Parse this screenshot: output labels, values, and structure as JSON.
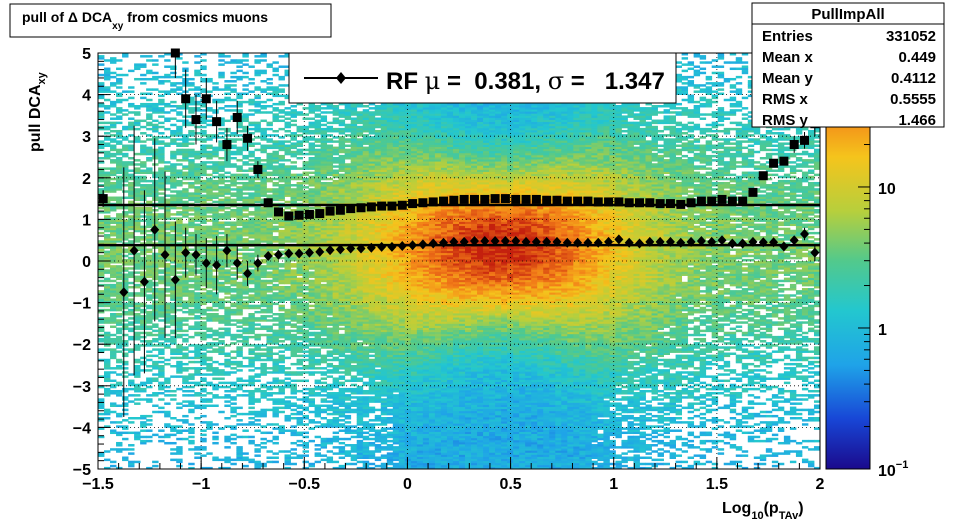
{
  "chart_data": {
    "type": "heatmap",
    "title": "pull of Δ DCA",
    "title_sub": "xy",
    "title_tail": " from cosmics muons",
    "xlabel_pre": "Log",
    "xlabel_sub1": "10",
    "xlabel_mid": "(p",
    "xlabel_sub2": "TAv",
    "xlabel_post": ")",
    "ylabel_pre": "pull DCA",
    "ylabel_sub": "xy",
    "xlim": [
      -1.5,
      2
    ],
    "ylim": [
      -5,
      5
    ],
    "x_ticks": [
      "−1.5",
      "−1",
      "−0.5",
      "0",
      "0.5",
      "1",
      "1.5",
      "2"
    ],
    "x_tick_values": [
      -1.5,
      -1,
      -0.5,
      0,
      0.5,
      1,
      1.5,
      2
    ],
    "y_ticks": [
      "−5",
      "−4",
      "−3",
      "−2",
      "−1",
      "0",
      "1",
      "2",
      "3",
      "4",
      "5"
    ],
    "y_tick_values": [
      -5,
      -4,
      -3,
      -2,
      -1,
      0,
      1,
      2,
      3,
      4,
      5
    ],
    "grid": true,
    "color_scale": {
      "type": "log",
      "labels": [
        {
          "base": "10",
          "exp": "−1",
          "value": 0.1
        },
        {
          "base": "1",
          "exp": "",
          "value": 1
        },
        {
          "base": "10",
          "exp": "",
          "value": 10
        }
      ]
    },
    "legend": {
      "position": "top-center",
      "prefix": "RF ",
      "mu_symbol": "μ",
      "mu_text": " =  0.381, ",
      "sigma_symbol": "σ",
      "sigma_text": " =   1.347"
    },
    "fit_lines": [
      {
        "name": "mean",
        "y": 0.381
      },
      {
        "name": "sigma",
        "y": 1.347
      }
    ],
    "stats_box": {
      "title": "PullImpAll",
      "rows": [
        {
          "label": "Entries",
          "value": "331052"
        },
        {
          "label": "Mean x",
          "value": "0.449"
        },
        {
          "label": "Mean y",
          "value": "0.4112"
        },
        {
          "label": "RMS x",
          "value": "0.5555"
        },
        {
          "label": "RMS y",
          "value": "1.466"
        }
      ]
    },
    "series": [
      {
        "marker": "diamond",
        "points": [
          [
            -1.475,
            1.5,
            0.2
          ],
          [
            -1.375,
            -0.75,
            3
          ],
          [
            -1.325,
            0.25,
            3
          ],
          [
            -1.275,
            -0.5,
            2.2
          ],
          [
            -1.225,
            0.75,
            2.2
          ],
          [
            -1.175,
            0.15,
            2
          ],
          [
            -1.125,
            -0.45,
            1.4
          ],
          [
            -1.075,
            0.2,
            0.6
          ],
          [
            -1.025,
            0.15,
            0.5
          ],
          [
            -0.975,
            -0.05,
            0.6
          ],
          [
            -0.925,
            -0.1,
            0.7
          ],
          [
            -0.875,
            0.25,
            0.4
          ],
          [
            -0.825,
            -0.05,
            0.4
          ],
          [
            -0.775,
            -0.3,
            0.3
          ],
          [
            -0.725,
            -0.05,
            0.2
          ],
          [
            -0.675,
            0.12,
            0.1
          ],
          [
            -0.625,
            0.15,
            0.05
          ],
          [
            -0.575,
            0.18,
            0.05
          ],
          [
            -0.525,
            0.18,
            0.05
          ],
          [
            -0.475,
            0.2,
            0.05
          ],
          [
            -0.425,
            0.22,
            0.05
          ],
          [
            -0.375,
            0.26,
            0.05
          ],
          [
            -0.325,
            0.28,
            0.05
          ],
          [
            -0.275,
            0.3,
            0.05
          ],
          [
            -0.225,
            0.3,
            0.05
          ],
          [
            -0.175,
            0.32,
            0.05
          ],
          [
            -0.125,
            0.34,
            0.05
          ],
          [
            -0.075,
            0.34,
            0.05
          ],
          [
            -0.025,
            0.36,
            0.05
          ],
          [
            0.025,
            0.38,
            0.05
          ],
          [
            0.075,
            0.4,
            0.05
          ],
          [
            0.125,
            0.42,
            0.05
          ],
          [
            0.175,
            0.44,
            0.05
          ],
          [
            0.225,
            0.46,
            0.05
          ],
          [
            0.275,
            0.46,
            0.05
          ],
          [
            0.325,
            0.48,
            0.05
          ],
          [
            0.375,
            0.48,
            0.05
          ],
          [
            0.425,
            0.48,
            0.05
          ],
          [
            0.475,
            0.48,
            0.05
          ],
          [
            0.525,
            0.48,
            0.05
          ],
          [
            0.575,
            0.46,
            0.05
          ],
          [
            0.625,
            0.46,
            0.05
          ],
          [
            0.675,
            0.46,
            0.05
          ],
          [
            0.725,
            0.46,
            0.05
          ],
          [
            0.775,
            0.44,
            0.05
          ],
          [
            0.825,
            0.44,
            0.05
          ],
          [
            0.875,
            0.44,
            0.05
          ],
          [
            0.925,
            0.44,
            0.05
          ],
          [
            0.975,
            0.46,
            0.05
          ],
          [
            1.025,
            0.52,
            0.05
          ],
          [
            1.075,
            0.44,
            0.05
          ],
          [
            1.125,
            0.42,
            0.05
          ],
          [
            1.175,
            0.46,
            0.05
          ],
          [
            1.225,
            0.46,
            0.05
          ],
          [
            1.275,
            0.46,
            0.05
          ],
          [
            1.325,
            0.44,
            0.05
          ],
          [
            1.375,
            0.46,
            0.05
          ],
          [
            1.425,
            0.48,
            0.05
          ],
          [
            1.475,
            0.46,
            0.05
          ],
          [
            1.525,
            0.5,
            0.05
          ],
          [
            1.575,
            0.42,
            0.05
          ],
          [
            1.625,
            0.42,
            0.05
          ],
          [
            1.675,
            0.46,
            0.05
          ],
          [
            1.725,
            0.45,
            0.05
          ],
          [
            1.775,
            0.45,
            0.05
          ],
          [
            1.825,
            0.35,
            0.1
          ],
          [
            1.875,
            0.5,
            0.1
          ],
          [
            1.925,
            0.65,
            0.15
          ],
          [
            1.975,
            0.2,
            0.2
          ]
        ]
      },
      {
        "marker": "square",
        "points": [
          [
            -1.475,
            1.5,
            0.2
          ],
          [
            -1.125,
            5.0,
            0.6
          ],
          [
            -1.075,
            3.9,
            0.7
          ],
          [
            -1.025,
            3.4,
            0.6
          ],
          [
            -0.975,
            3.9,
            0.5
          ],
          [
            -0.925,
            3.35,
            0.5
          ],
          [
            -0.875,
            2.8,
            0.4
          ],
          [
            -0.825,
            3.45,
            0.4
          ],
          [
            -0.775,
            2.95,
            0.3
          ],
          [
            -0.725,
            2.2,
            0.2
          ],
          [
            -0.675,
            1.4,
            0.1
          ],
          [
            -0.625,
            1.18,
            0.05
          ],
          [
            -0.575,
            1.08,
            0.05
          ],
          [
            -0.525,
            1.1,
            0.05
          ],
          [
            -0.475,
            1.12,
            0.05
          ],
          [
            -0.425,
            1.14,
            0.05
          ],
          [
            -0.375,
            1.2,
            0.05
          ],
          [
            -0.325,
            1.22,
            0.05
          ],
          [
            -0.275,
            1.26,
            0.05
          ],
          [
            -0.225,
            1.28,
            0.05
          ],
          [
            -0.175,
            1.3,
            0.05
          ],
          [
            -0.125,
            1.32,
            0.05
          ],
          [
            -0.075,
            1.32,
            0.05
          ],
          [
            -0.025,
            1.34,
            0.05
          ],
          [
            0.025,
            1.38,
            0.05
          ],
          [
            0.075,
            1.4,
            0.05
          ],
          [
            0.125,
            1.42,
            0.05
          ],
          [
            0.175,
            1.44,
            0.05
          ],
          [
            0.225,
            1.46,
            0.05
          ],
          [
            0.275,
            1.48,
            0.05
          ],
          [
            0.325,
            1.48,
            0.05
          ],
          [
            0.375,
            1.48,
            0.05
          ],
          [
            0.425,
            1.5,
            0.05
          ],
          [
            0.475,
            1.5,
            0.05
          ],
          [
            0.525,
            1.48,
            0.05
          ],
          [
            0.575,
            1.48,
            0.05
          ],
          [
            0.625,
            1.48,
            0.05
          ],
          [
            0.675,
            1.46,
            0.05
          ],
          [
            0.725,
            1.46,
            0.05
          ],
          [
            0.775,
            1.44,
            0.05
          ],
          [
            0.825,
            1.44,
            0.05
          ],
          [
            0.875,
            1.44,
            0.05
          ],
          [
            0.925,
            1.42,
            0.05
          ],
          [
            0.975,
            1.42,
            0.05
          ],
          [
            1.025,
            1.42,
            0.05
          ],
          [
            1.075,
            1.4,
            0.05
          ],
          [
            1.125,
            1.4,
            0.05
          ],
          [
            1.175,
            1.4,
            0.05
          ],
          [
            1.225,
            1.38,
            0.05
          ],
          [
            1.275,
            1.38,
            0.05
          ],
          [
            1.325,
            1.36,
            0.05
          ],
          [
            1.375,
            1.4,
            0.05
          ],
          [
            1.425,
            1.44,
            0.05
          ],
          [
            1.475,
            1.44,
            0.05
          ],
          [
            1.525,
            1.48,
            0.05
          ],
          [
            1.575,
            1.44,
            0.05
          ],
          [
            1.625,
            1.44,
            0.05
          ],
          [
            1.675,
            1.65,
            0.05
          ],
          [
            1.725,
            2.05,
            0.1
          ],
          [
            1.775,
            2.35,
            0.1
          ],
          [
            1.825,
            2.4,
            0.1
          ],
          [
            1.875,
            2.8,
            0.2
          ],
          [
            1.925,
            2.9,
            0.2
          ],
          [
            1.975,
            3.3,
            0.3
          ]
        ]
      }
    ]
  }
}
